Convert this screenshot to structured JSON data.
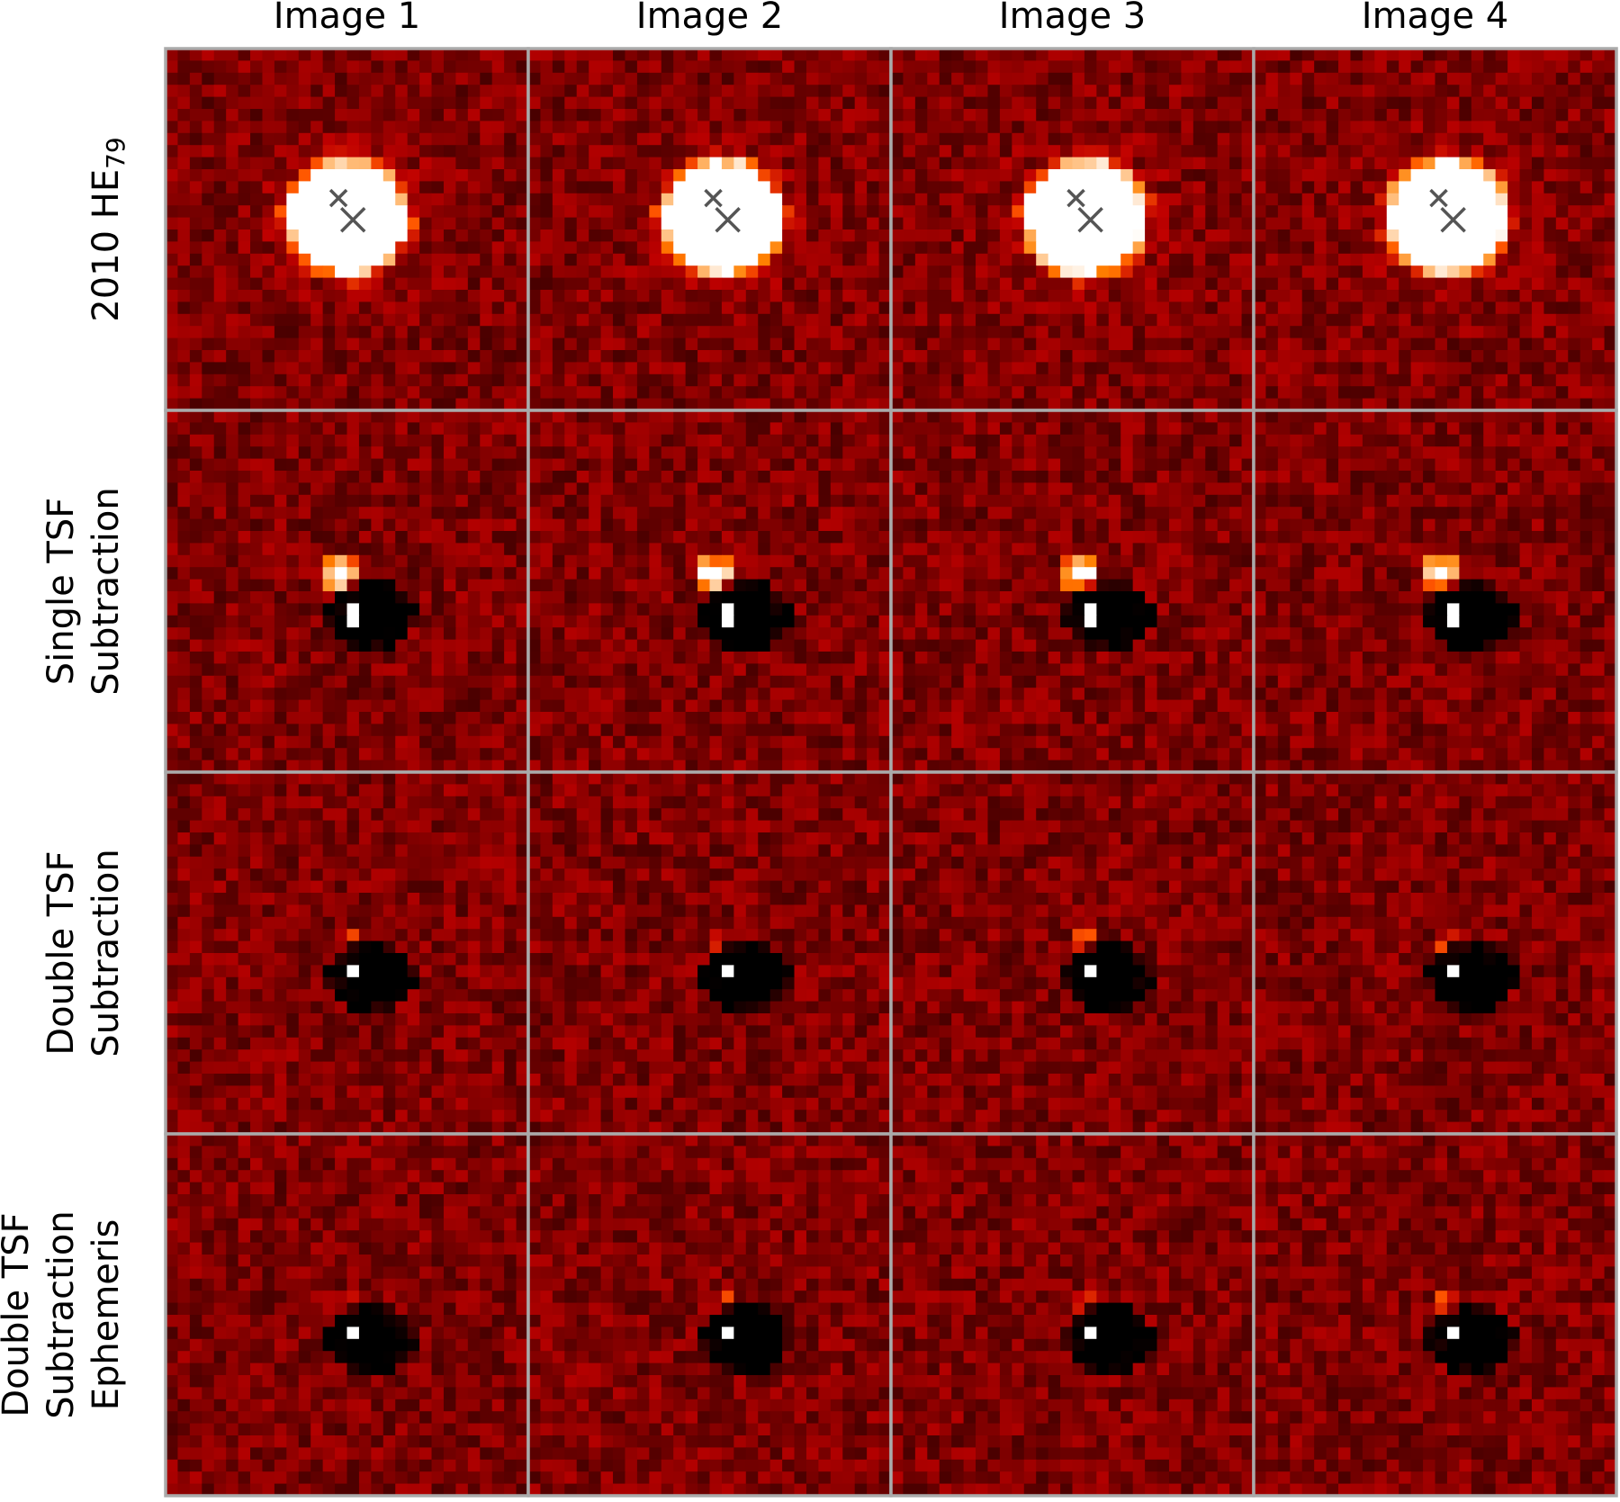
{
  "columns": [
    "Image 1",
    "Image 2",
    "Image 3",
    "Image 4"
  ],
  "rows": [
    {
      "label": {
        "text": "2010 HE",
        "subscript": "79"
      }
    },
    {
      "lines": [
        "Single TSF",
        "Subtraction"
      ]
    },
    {
      "lines": [
        "Double TSF",
        "Subtraction"
      ]
    },
    {
      "lines": [
        "Double TSF",
        "Subtraction",
        "Ephemeris"
      ]
    }
  ]
}
